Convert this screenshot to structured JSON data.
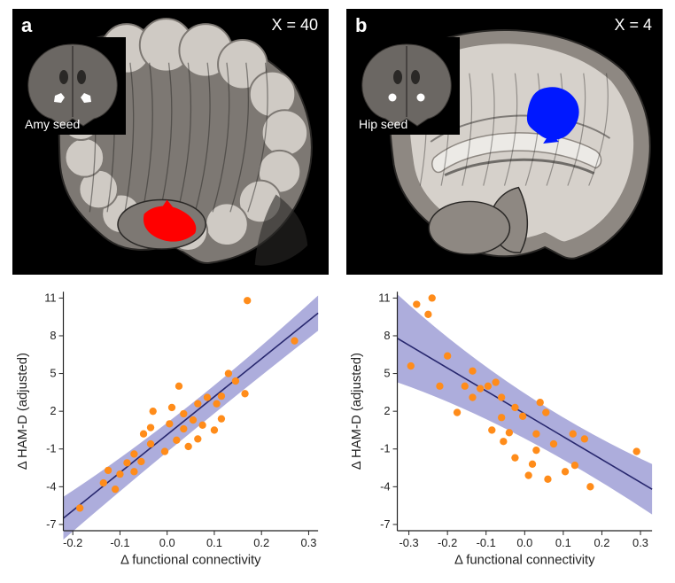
{
  "figure": {
    "panels": {
      "a": {
        "letter": "a",
        "coord_label": "X = 40",
        "inset_label": "Amy seed",
        "inset": {
          "left_seed_color": "#ffffff",
          "right_seed_color": "#ffffff",
          "seed_shape": "polygon",
          "brain_tone": "#6b6763"
        },
        "sagittal": {
          "activation_color": "#ff0000",
          "brain_tone_light": "#cfcac4",
          "brain_tone_mid": "#7d7873",
          "brain_tone_dark": "#2a2826",
          "bg": "#000000"
        }
      },
      "b": {
        "letter": "b",
        "coord_label": "X = 4",
        "inset_label": "Hip seed",
        "inset": {
          "left_seed_color": "#ffffff",
          "right_seed_color": "#ffffff",
          "seed_shape": "circle",
          "brain_tone": "#6b6763"
        },
        "sagittal": {
          "activation_color": "#0018ff",
          "brain_tone_light": "#d6d1cb",
          "brain_tone_mid": "#8e8882",
          "brain_tone_dark": "#2a2826",
          "bg": "#000000"
        }
      }
    },
    "scatter": {
      "common": {
        "point_color": "#ff8c1a",
        "point_radius": 4.2,
        "line_color": "#27276e",
        "line_width": 1.6,
        "ci_fill": "#6a6abf",
        "ci_opacity": 0.55,
        "bg": "#ffffff",
        "tick_color": "#222222",
        "xlabel": "Δ functional connectivity",
        "ylabel": "Δ HAM-D (adjusted)",
        "label_fontsize": 15,
        "tick_fontsize": 13,
        "yticks": [
          -7,
          -4,
          -1,
          2,
          5,
          8,
          11
        ],
        "ylim": [
          -7.5,
          11.5
        ]
      },
      "a": {
        "xticks": [
          -0.2,
          -0.1,
          0.0,
          0.1,
          0.2,
          0.3
        ],
        "xlim": [
          -0.22,
          0.32
        ],
        "slope_sign": "positive",
        "line_p1": {
          "x": -0.22,
          "y": -6.5
        },
        "line_p2": {
          "x": 0.32,
          "y": 9.8
        },
        "ci_top_p1": {
          "x": -0.22,
          "y": -4.8
        },
        "ci_top_mid": {
          "x": 0.03,
          "y": 1.3
        },
        "ci_top_p2": {
          "x": 0.32,
          "y": 11.2
        },
        "ci_bot_p1": {
          "x": -0.22,
          "y": -8.2
        },
        "ci_bot_mid": {
          "x": 0.03,
          "y": -0.1
        },
        "ci_bot_p2": {
          "x": 0.32,
          "y": 8.4
        },
        "points": [
          {
            "x": -0.185,
            "y": -5.7
          },
          {
            "x": -0.135,
            "y": -3.7
          },
          {
            "x": -0.125,
            "y": -2.7
          },
          {
            "x": -0.11,
            "y": -4.2
          },
          {
            "x": -0.1,
            "y": -3.0
          },
          {
            "x": -0.085,
            "y": -2.1
          },
          {
            "x": -0.07,
            "y": -1.4
          },
          {
            "x": -0.07,
            "y": -2.8
          },
          {
            "x": -0.055,
            "y": -2.0
          },
          {
            "x": -0.05,
            "y": 0.2
          },
          {
            "x": -0.035,
            "y": 0.7
          },
          {
            "x": -0.035,
            "y": -0.6
          },
          {
            "x": -0.03,
            "y": 2.0
          },
          {
            "x": -0.005,
            "y": -1.2
          },
          {
            "x": 0.005,
            "y": 1.0
          },
          {
            "x": 0.01,
            "y": 2.3
          },
          {
            "x": 0.02,
            "y": -0.3
          },
          {
            "x": 0.025,
            "y": 4.0
          },
          {
            "x": 0.035,
            "y": 0.6
          },
          {
            "x": 0.035,
            "y": 1.8
          },
          {
            "x": 0.045,
            "y": -0.8
          },
          {
            "x": 0.055,
            "y": 1.3
          },
          {
            "x": 0.065,
            "y": -0.2
          },
          {
            "x": 0.065,
            "y": 2.6
          },
          {
            "x": 0.075,
            "y": 0.9
          },
          {
            "x": 0.085,
            "y": 3.1
          },
          {
            "x": 0.1,
            "y": 0.5
          },
          {
            "x": 0.105,
            "y": 2.6
          },
          {
            "x": 0.115,
            "y": 3.2
          },
          {
            "x": 0.115,
            "y": 1.4
          },
          {
            "x": 0.13,
            "y": 5.0
          },
          {
            "x": 0.145,
            "y": 4.4
          },
          {
            "x": 0.165,
            "y": 3.4
          },
          {
            "x": 0.17,
            "y": 10.8
          },
          {
            "x": 0.27,
            "y": 7.6
          }
        ]
      },
      "b": {
        "xticks": [
          -0.3,
          -0.2,
          -0.1,
          0.0,
          0.1,
          0.2,
          0.3
        ],
        "xlim": [
          -0.33,
          0.33
        ],
        "slope_sign": "negative",
        "line_p1": {
          "x": -0.33,
          "y": 7.8
        },
        "line_p2": {
          "x": 0.33,
          "y": -4.2
        },
        "ci_top_p1": {
          "x": -0.33,
          "y": 11.3
        },
        "ci_top_mid": {
          "x": -0.03,
          "y": 2.9
        },
        "ci_top_p2": {
          "x": 0.33,
          "y": -2.2
        },
        "ci_bot_p1": {
          "x": -0.33,
          "y": 4.3
        },
        "ci_bot_mid": {
          "x": -0.03,
          "y": 1.1
        },
        "ci_bot_p2": {
          "x": 0.33,
          "y": -6.2
        },
        "points": [
          {
            "x": -0.295,
            "y": 5.6
          },
          {
            "x": -0.28,
            "y": 10.5
          },
          {
            "x": -0.25,
            "y": 9.7
          },
          {
            "x": -0.24,
            "y": 11.0
          },
          {
            "x": -0.22,
            "y": 4.0
          },
          {
            "x": -0.2,
            "y": 6.4
          },
          {
            "x": -0.175,
            "y": 1.9
          },
          {
            "x": -0.155,
            "y": 4.0
          },
          {
            "x": -0.135,
            "y": 5.2
          },
          {
            "x": -0.135,
            "y": 3.1
          },
          {
            "x": -0.115,
            "y": 3.8
          },
          {
            "x": -0.095,
            "y": 4.0
          },
          {
            "x": -0.085,
            "y": 0.5
          },
          {
            "x": -0.075,
            "y": 4.3
          },
          {
            "x": -0.06,
            "y": 3.1
          },
          {
            "x": -0.06,
            "y": 1.5
          },
          {
            "x": -0.055,
            "y": -0.4
          },
          {
            "x": -0.04,
            "y": 0.3
          },
          {
            "x": -0.025,
            "y": 2.3
          },
          {
            "x": -0.025,
            "y": -1.7
          },
          {
            "x": -0.005,
            "y": 1.6
          },
          {
            "x": 0.01,
            "y": -3.1
          },
          {
            "x": 0.02,
            "y": -2.2
          },
          {
            "x": 0.03,
            "y": 0.2
          },
          {
            "x": 0.03,
            "y": -1.1
          },
          {
            "x": 0.04,
            "y": 2.7
          },
          {
            "x": 0.055,
            "y": 1.9
          },
          {
            "x": 0.06,
            "y": -3.4
          },
          {
            "x": 0.075,
            "y": -0.6
          },
          {
            "x": 0.105,
            "y": -2.8
          },
          {
            "x": 0.125,
            "y": 0.2
          },
          {
            "x": 0.13,
            "y": -2.3
          },
          {
            "x": 0.155,
            "y": -0.2
          },
          {
            "x": 0.17,
            "y": -4.0
          },
          {
            "x": 0.29,
            "y": -1.2
          }
        ]
      }
    }
  }
}
